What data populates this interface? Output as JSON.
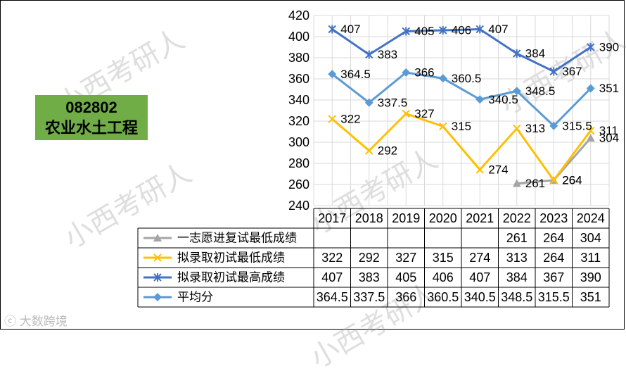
{
  "code_label": {
    "line1": "082802",
    "line2": "农业水土工程"
  },
  "watermark": "小西考研人",
  "logo_text": "大数跨境",
  "chart_data": {
    "type": "line",
    "x": [
      "2017",
      "2018",
      "2019",
      "2020",
      "2021",
      "2022",
      "2023",
      "2024"
    ],
    "ylim": [
      240,
      420
    ],
    "yticks": [
      240,
      260,
      280,
      300,
      320,
      340,
      360,
      380,
      400,
      420
    ],
    "grid": true,
    "legend": "data-table",
    "series": [
      {
        "name": "一志愿进复试最低成绩",
        "color": "#a5a5a5",
        "marker": "triangle",
        "values": [
          null,
          null,
          null,
          null,
          null,
          261,
          264,
          304
        ]
      },
      {
        "name": "拟录取初试最低成绩",
        "color": "#ffc000",
        "marker": "x",
        "values": [
          322,
          292,
          327,
          315,
          274,
          313,
          264,
          311
        ]
      },
      {
        "name": "拟录取初试最高成绩",
        "color": "#4472c4",
        "marker": "star",
        "values": [
          407,
          383,
          405,
          406,
          407,
          384,
          367,
          390
        ]
      },
      {
        "name": "平均分",
        "color": "#5b9bd5",
        "marker": "diamond",
        "values": [
          364.5,
          337.5,
          366,
          360.5,
          340.5,
          348.5,
          315.5,
          351
        ]
      }
    ]
  }
}
